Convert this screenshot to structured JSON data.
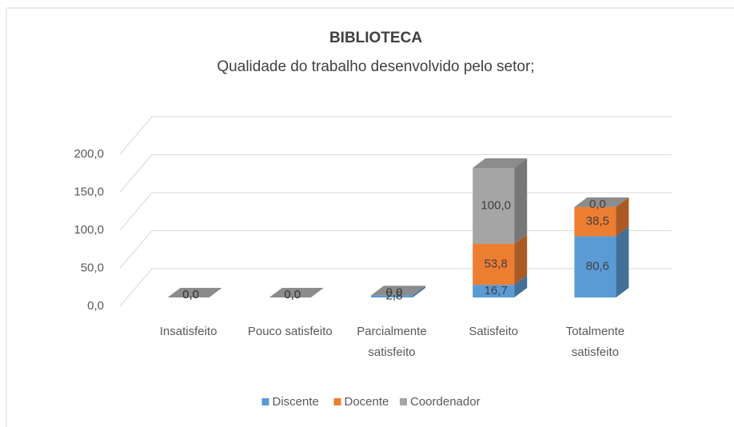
{
  "chart_data": {
    "type": "bar3d_stacked",
    "title": "BIBLIOTECA",
    "subtitle": "Qualidade do trabalho desenvolvido pelo setor;",
    "categories": [
      "Insatisfeito",
      "Pouco satisfeito",
      "Parcialmente satisfeito",
      "Satisfeito",
      "Totalmente satisfeito"
    ],
    "series": [
      {
        "name": "Discente",
        "color": "#5b9bd5",
        "values": [
          0.0,
          0.0,
          2.8,
          16.7,
          80.6
        ],
        "value_labels": [
          "0,0",
          "0,0",
          "2,8",
          "16,7",
          "80,6"
        ]
      },
      {
        "name": "Docente",
        "color": "#ed7d31",
        "values": [
          0.0,
          0.0,
          0.0,
          53.8,
          38.5
        ],
        "value_labels": [
          "0,0",
          "0,0",
          "0,0",
          "53,8",
          "38,5"
        ]
      },
      {
        "name": "Coordenador",
        "color": "#a5a5a5",
        "values": [
          0.0,
          0.0,
          0.0,
          100.0,
          0.0
        ],
        "value_labels": [
          "0,0",
          "0,0",
          "0,0",
          "100,0",
          "0,0"
        ]
      }
    ],
    "ylim": [
      0,
      200
    ],
    "yticks": [
      {
        "value": 0,
        "label": "0,0"
      },
      {
        "value": 50,
        "label": "50,0"
      },
      {
        "value": 100,
        "label": "100,0"
      },
      {
        "value": 150,
        "label": "150,0"
      },
      {
        "value": 200,
        "label": "200,0"
      }
    ],
    "grid": true,
    "legend": "bottom"
  }
}
